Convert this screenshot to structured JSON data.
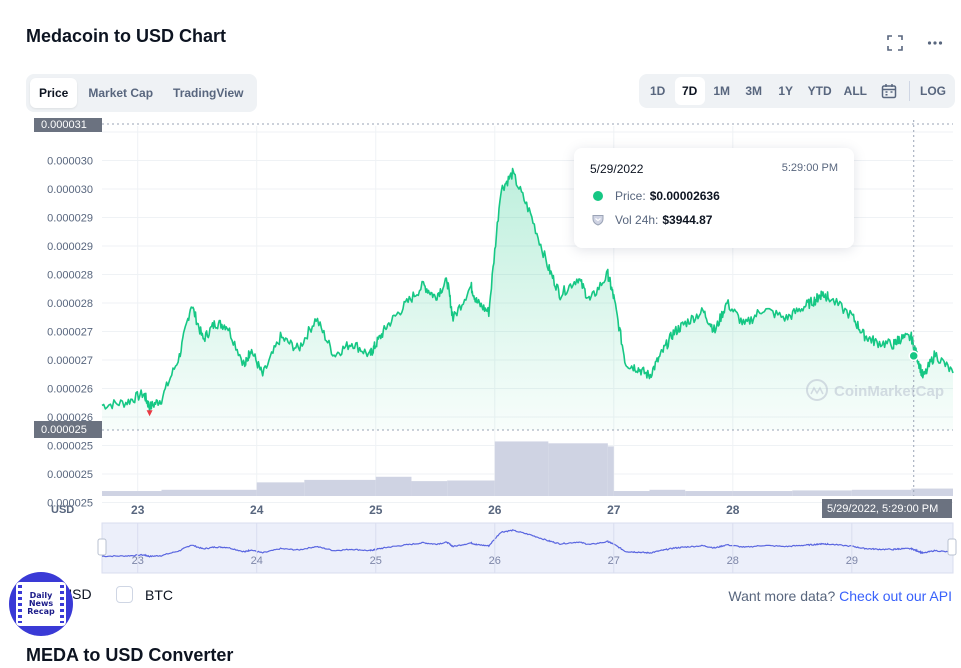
{
  "header": {
    "title": "Medacoin to USD Chart"
  },
  "icons": {
    "fullscreen": "fullscreen-icon",
    "more": "more-icon",
    "calendar": "calendar-icon"
  },
  "tabs": [
    {
      "label": "Price",
      "active": true
    },
    {
      "label": "Market Cap",
      "active": false
    },
    {
      "label": "TradingView",
      "active": false
    }
  ],
  "ranges": [
    {
      "label": "1D",
      "active": false
    },
    {
      "label": "7D",
      "active": true
    },
    {
      "label": "1M",
      "active": false
    },
    {
      "label": "3M",
      "active": false
    },
    {
      "label": "1Y",
      "active": false
    },
    {
      "label": "YTD",
      "active": false
    },
    {
      "label": "ALL",
      "active": false
    }
  ],
  "log_label": "LOG",
  "tooltip": {
    "date": "5/29/2022",
    "time": "5:29:00 PM",
    "price_label": "Price:",
    "price_value": "$0.00002636",
    "vol_label": "Vol 24h:",
    "vol_value": "$3944.87"
  },
  "currency": {
    "usd_label": "USD",
    "btc_label": "BTC"
  },
  "more_data": {
    "text": "Want more data?",
    "link": "Check out our API"
  },
  "badge": {
    "line1": "Daily",
    "line2": "News",
    "line3": "Recap"
  },
  "converter_title": "MEDA to USD Converter",
  "colors": {
    "line": "#16c784",
    "volume": "#cfd3e3",
    "nav_line": "#5a66e0",
    "accent_link": "#3861fb",
    "low_marker": "#ea3943"
  },
  "chart_data": {
    "type": "line",
    "title": "",
    "ylabel": "USD",
    "x_unit": "day",
    "x_ticks": [
      23,
      24,
      25,
      26,
      27,
      28
    ],
    "x_ticks_navigator": [
      23,
      24,
      25,
      26,
      27,
      28,
      29
    ],
    "y_tick_labels": [
      "0.000031",
      "0.000030",
      "0.000030",
      "0.000029",
      "0.000029",
      "0.000028",
      "0.000028",
      "0.000027",
      "0.000027",
      "0.000026",
      "0.000026",
      "0.000025",
      "0.000025",
      "0.000025"
    ],
    "y_current_label": "0.000025",
    "x_crosshair_label": "5/29/2022, 5:29:00 PM",
    "watermark": "CoinMarketCap",
    "ylim": [
      2.48e-05,
      3.12e-05
    ],
    "xlim": [
      22.7,
      29.85
    ],
    "grid": true,
    "series": [
      {
        "x": [
          22.7,
          22.9,
          23.05,
          23.1,
          23.2,
          23.35,
          23.45,
          23.55,
          23.65,
          23.75,
          23.9,
          23.95,
          24.05,
          24.2,
          24.35,
          24.5,
          24.65,
          24.8,
          24.95,
          25.0,
          25.1,
          25.25,
          25.4,
          25.5,
          25.6,
          25.65,
          25.8,
          25.85,
          25.95,
          26.05,
          26.15,
          26.3,
          26.45,
          26.55,
          26.7,
          26.8,
          26.95,
          27.0,
          27.1,
          27.2,
          27.3,
          27.4,
          27.5,
          27.6,
          27.75,
          27.85,
          27.95,
          28.1,
          28.25,
          28.45,
          28.6,
          28.7,
          28.75,
          28.8,
          29.0,
          29.1,
          29.2,
          29.35,
          29.4,
          29.5,
          29.55,
          29.6,
          29.7,
          29.85
        ],
        "y": [
          2.532e-05,
          2.538e-05,
          2.557e-05,
          2.528e-05,
          2.545e-05,
          2.635e-05,
          2.745e-05,
          2.67e-05,
          2.705e-05,
          2.7e-05,
          2.615e-05,
          2.651e-05,
          2.595e-05,
          2.675e-05,
          2.65e-05,
          2.715e-05,
          2.638e-05,
          2.664e-05,
          2.637e-05,
          2.66e-05,
          2.701e-05,
          2.744e-05,
          2.785e-05,
          2.76e-05,
          2.794e-05,
          2.714e-05,
          2.783e-05,
          2.749e-05,
          2.728e-05,
          2.985e-05,
          3.02e-05,
          2.935e-05,
          2.822e-05,
          2.765e-05,
          2.8e-05,
          2.752e-05,
          2.808e-05,
          2.758e-05,
          2.62e-05,
          2.61e-05,
          2.594e-05,
          2.64e-05,
          2.684e-05,
          2.705e-05,
          2.73e-05,
          2.688e-05,
          2.748e-05,
          2.7e-05,
          2.735e-05,
          2.715e-05,
          2.74e-05,
          2.755e-05,
          2.768e-05,
          2.76e-05,
          2.72e-05,
          2.68e-05,
          2.665e-05,
          2.66e-05,
          2.672e-05,
          2.675e-05,
          2.633e-05,
          2.59e-05,
          2.64e-05,
          2.6e-05
        ]
      }
    ],
    "volume": {
      "x": [
        22.7,
        23.2,
        24.0,
        24.4,
        25.0,
        25.3,
        25.6,
        26.0,
        26.45,
        26.95,
        27.0,
        27.3,
        27.6,
        28.0,
        28.5,
        29.0,
        29.5,
        29.85
      ],
      "values": [
        0.08,
        0.1,
        0.22,
        0.26,
        0.31,
        0.24,
        0.25,
        0.88,
        0.85,
        0.8,
        0.08,
        0.1,
        0.08,
        0.08,
        0.09,
        0.1,
        0.12,
        0.14
      ]
    },
    "crosshair": {
      "x": 29.52,
      "y": 2.636e-05
    },
    "low_marker": {
      "x": 23.1,
      "y": 2.528e-05
    }
  }
}
